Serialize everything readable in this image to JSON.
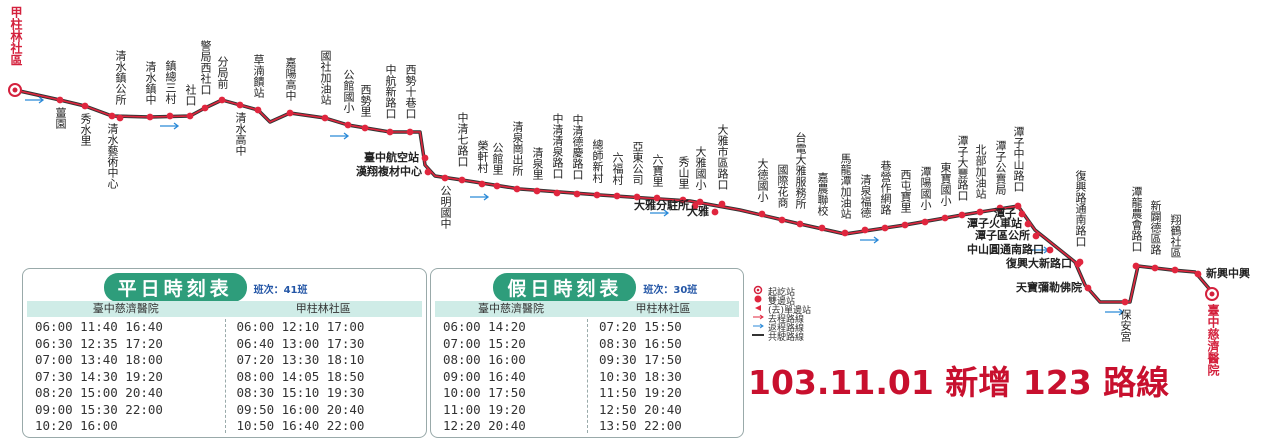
{
  "route": {
    "stations": [
      "甲柱林社區",
      "薑園",
      "秀水里",
      "清水鎮公所",
      "清水藝術中心",
      "清水鎮中",
      "鎮總三村",
      "社口",
      "警局西社口",
      "分局前",
      "清水高中",
      "草湳饋站",
      "嘉陽高中",
      "國社加油站",
      "公館國小",
      "西勢里",
      "中航新路口",
      "西勢十巷口",
      "臺中航空站",
      "漢翔複材中心",
      "公明國中",
      "中清七路口",
      "榮軒村",
      "公館里",
      "清泉崗出所",
      "清泉里",
      "中清清泉路口",
      "中清德慶路口",
      "總師新村",
      "六福村",
      "亞東公司",
      "六寶里",
      "秀山里",
      "大雅國小",
      "大雅市區路口",
      "大雅分駐所",
      "大雅",
      "大德國小",
      "國際花商",
      "台電大雅服務所",
      "嘉農聯校",
      "馬龍潭加油站",
      "清泉福德",
      "巷營作網路",
      "西屯寶里",
      "潭陽國小",
      "東寶國小",
      "潭子大豐路口",
      "北部加油站",
      "潭子公賣局",
      "潭子中山路口",
      "潭子",
      "潭子火車站",
      "潭子區公所",
      "中山圓通南路口",
      "復興大新路口",
      "天寶彌勒佛院",
      "復興路通南路口",
      "保安宮",
      "潭龍農會路口",
      "新闢德區路",
      "翔鶴社區",
      "新興中興",
      "臺中慈濟醫院"
    ]
  },
  "timetables": [
    {
      "title": "平日時刻表",
      "note": "班次：41班",
      "headers": [
        "臺中慈濟醫院",
        "甲柱林社區"
      ],
      "columns": [
        [
          "06:00 11:40 16:40",
          "06:30 12:35 17:20",
          "07:00 13:40 18:00",
          "07:30 14:30 19:20",
          "08:20 15:00 20:40",
          "09:00 15:30 22:00",
          "10:20 16:00"
        ],
        [
          "06:00 12:10 17:00",
          "06:40 13:00 17:30",
          "07:20 13:30 18:10",
          "08:00 14:05 18:50",
          "08:30 15:10 19:30",
          "09:50 16:00 20:40",
          "10:50 16:40 22:00"
        ]
      ]
    },
    {
      "title": "假日時刻表",
      "note": "班次：30班",
      "headers": [
        "臺中慈濟醫院",
        "甲柱林社區"
      ],
      "columns": [
        [
          "06:00 14:20",
          "07:00 15:20",
          "08:00 16:00",
          "09:00 16:40",
          "10:00 17:50",
          "11:00 19:20",
          "12:20 20:40",
          "13:20"
        ],
        [
          "07:20 15:50",
          "08:30 16:50",
          "09:30 17:50",
          "10:30 18:30",
          "11:50 19:20",
          "12:50 20:40",
          "13:50 22:00",
          "14:50"
        ]
      ]
    }
  ],
  "legend": [
    "起訖站",
    "雙邊站",
    "(去)單邊站",
    "去程路線",
    "返程路線",
    "共駛路線"
  ],
  "headline": "103.11.01 新增 123 路線"
}
